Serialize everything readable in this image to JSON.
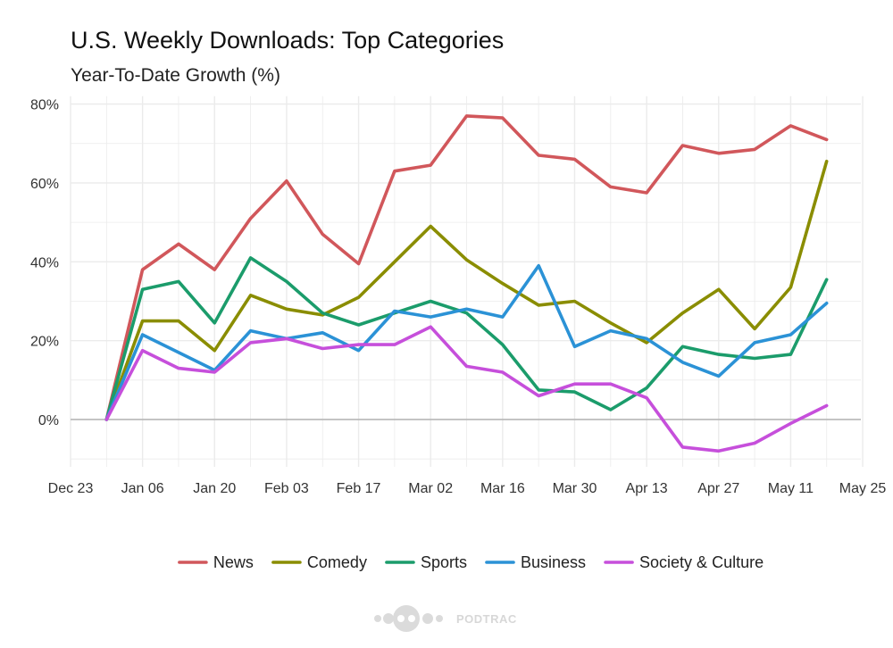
{
  "chart_data": {
    "type": "line",
    "title": "U.S. Weekly Downloads: Top Categories",
    "subtitle": "Year-To-Date Growth (%)",
    "xlabel": "",
    "ylabel": "",
    "x": [
      "2023-12-30",
      "2024-01-06",
      "2024-01-13",
      "2024-01-20",
      "2024-01-27",
      "2024-02-03",
      "2024-02-10",
      "2024-02-17",
      "2024-02-24",
      "2024-03-02",
      "2024-03-09",
      "2024-03-16",
      "2024-03-23",
      "2024-03-30",
      "2024-04-06",
      "2024-04-13",
      "2024-04-20",
      "2024-04-27",
      "2024-05-04",
      "2024-05-11",
      "2024-05-18"
    ],
    "x_ticks": [
      "Dec 23",
      "Jan 06",
      "Jan 20",
      "Feb 03",
      "Feb 17",
      "Mar 02",
      "Mar 16",
      "Mar 30",
      "Apr 13",
      "Apr 27",
      "May 11",
      "May 25"
    ],
    "y_ticks": [
      "0%",
      "20%",
      "40%",
      "60%",
      "80%"
    ],
    "ylim": [
      -12,
      82
    ],
    "grid": true,
    "legend_position": "bottom",
    "series": [
      {
        "name": "News",
        "color": "#d1575b",
        "values": [
          0,
          38,
          44.5,
          38,
          51,
          60.5,
          47,
          39.5,
          63,
          64.5,
          77,
          76.5,
          67,
          66,
          59,
          57.5,
          69.5,
          67.5,
          68.5,
          74.5,
          71
        ]
      },
      {
        "name": "Comedy",
        "color": "#8a8d00",
        "values": [
          0,
          25,
          25,
          17.5,
          31.5,
          28,
          26.5,
          31,
          40,
          49,
          40.5,
          34.5,
          29,
          30,
          24.5,
          19.5,
          27,
          33,
          23,
          33.5,
          65.5
        ]
      },
      {
        "name": "Sports",
        "color": "#1b9c6b",
        "values": [
          0,
          33,
          35,
          24.5,
          41,
          35,
          27,
          24,
          27,
          30,
          27,
          19,
          7.5,
          7,
          2.5,
          8,
          18.5,
          16.5,
          15.5,
          16.5,
          35.5
        ]
      },
      {
        "name": "Business",
        "color": "#2b92d6",
        "values": [
          0,
          21.5,
          17,
          12.5,
          22.5,
          20.5,
          22,
          17.5,
          27.5,
          26,
          28,
          26,
          39,
          18.5,
          22.5,
          20.5,
          14.5,
          11,
          19.5,
          21.5,
          29.5
        ]
      },
      {
        "name": "Society & Culture",
        "color": "#c64fdb",
        "values": [
          0,
          17.5,
          13,
          12,
          19.5,
          20.5,
          18,
          19,
          19,
          23.5,
          13.5,
          12,
          6,
          9,
          9,
          5.5,
          -7,
          -8,
          -6,
          -1,
          3.5
        ]
      }
    ]
  },
  "watermark": {
    "text": "PODTRAC"
  }
}
